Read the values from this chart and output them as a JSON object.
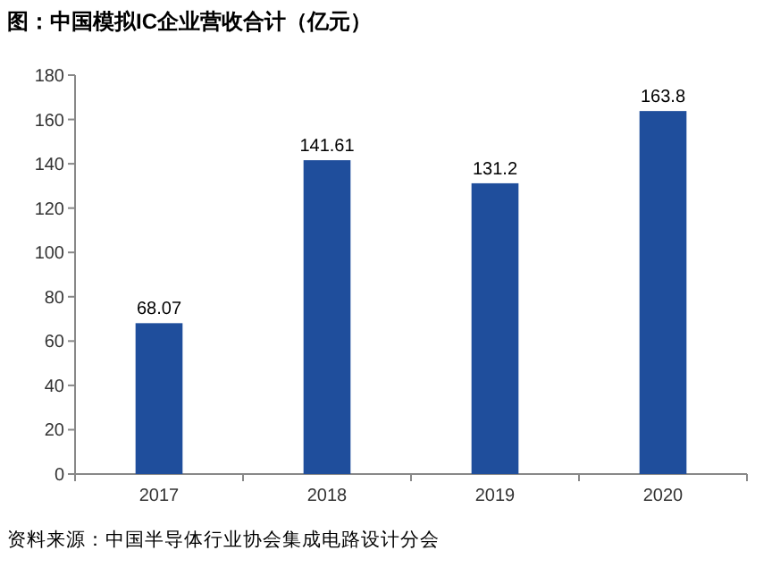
{
  "chart_data": {
    "type": "bar",
    "title": "图：中国模拟IC企业营收合计（亿元）",
    "annotations": [
      "资料来源：中国半导体行业协会集成电路设计分会"
    ],
    "categories": [
      "2017",
      "2018",
      "2019",
      "2020"
    ],
    "values": [
      68.07,
      141.61,
      131.2,
      163.8
    ],
    "color": "#1f4e9c",
    "ylim": [
      0,
      180
    ],
    "yticks": [
      0,
      20,
      40,
      60,
      80,
      100,
      120,
      140,
      160,
      180
    ],
    "data_labels": true
  }
}
